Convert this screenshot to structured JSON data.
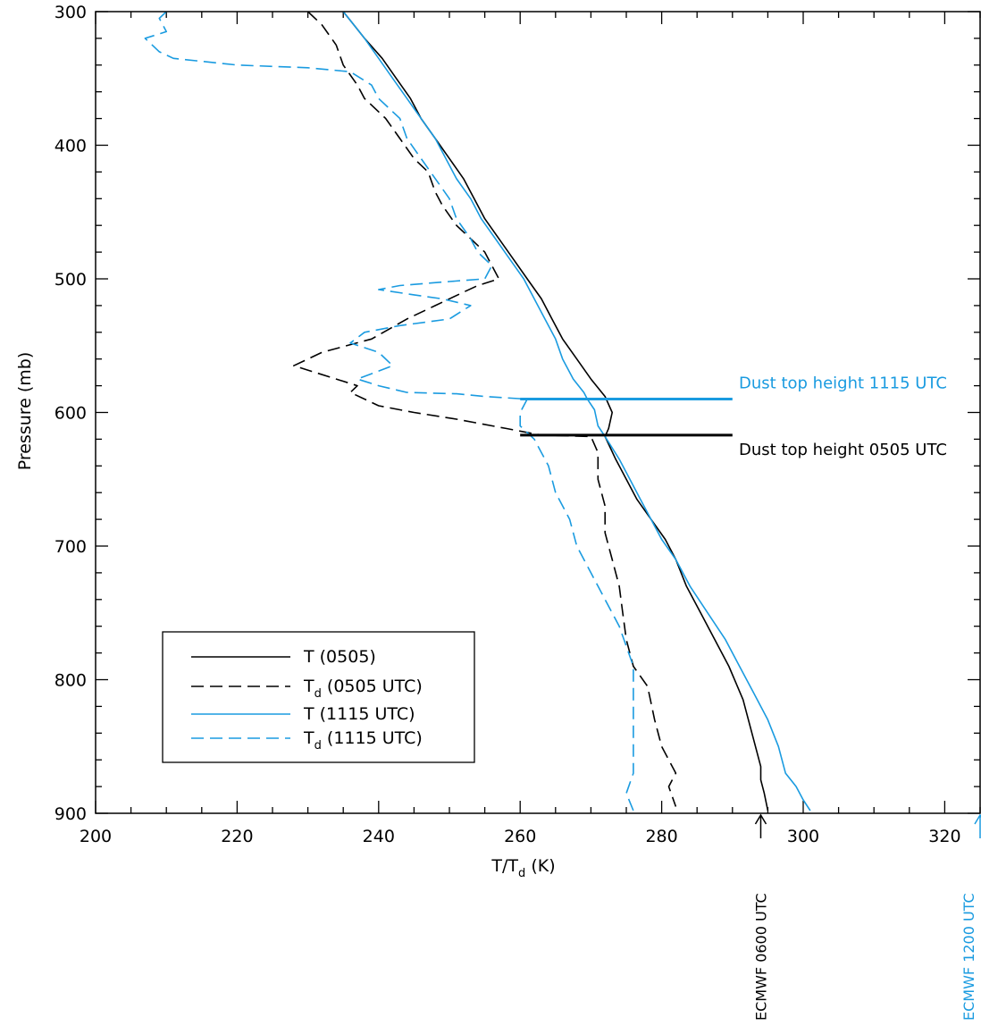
{
  "colors": {
    "black": "#000000",
    "blue": "#1a9be0"
  },
  "chart_data": {
    "type": "line",
    "xlabel": "T/T",
    "xlabel_sub": "d",
    "xlabel_unit": " (K)",
    "ylabel": "Pressure (mb)",
    "xlim": [
      200,
      325
    ],
    "ylim": [
      300,
      900
    ],
    "y_inverted": true,
    "x_ticks": [
      200,
      220,
      240,
      260,
      280,
      300,
      320
    ],
    "y_ticks": [
      300,
      400,
      500,
      600,
      700,
      800,
      900
    ],
    "legend": {
      "position": "bottom-left",
      "entries": [
        {
          "main": "T (0505)",
          "sub": "",
          "rest": "",
          "color": "#000000",
          "dash": "solid"
        },
        {
          "main": "T",
          "sub": "d",
          "rest": " (0505 UTC)",
          "color": "#000000",
          "dash": "dashed"
        },
        {
          "main": "T (1115 UTC)",
          "sub": "",
          "rest": "",
          "color": "#1a9be0",
          "dash": "solid"
        },
        {
          "main": "T",
          "sub": "d",
          "rest": " (1115 UTC)",
          "color": "#1a9be0",
          "dash": "dashed"
        }
      ]
    },
    "series": [
      {
        "name": "T (0505)",
        "color": "#000000",
        "dash": "solid",
        "points": [
          [
            235,
            300
          ],
          [
            236.5,
            310
          ],
          [
            238,
            320
          ],
          [
            240.5,
            335
          ],
          [
            242.5,
            350
          ],
          [
            244.5,
            365
          ],
          [
            246,
            380
          ],
          [
            248,
            395
          ],
          [
            250,
            410
          ],
          [
            252,
            425
          ],
          [
            253.5,
            440
          ],
          [
            255,
            455
          ],
          [
            257,
            470
          ],
          [
            259,
            485
          ],
          [
            261,
            500
          ],
          [
            263,
            515
          ],
          [
            264.5,
            530
          ],
          [
            266,
            545
          ],
          [
            268,
            560
          ],
          [
            270,
            575
          ],
          [
            272,
            588
          ],
          [
            273,
            600
          ],
          [
            272.5,
            612
          ],
          [
            272,
            618
          ],
          [
            273.5,
            635
          ],
          [
            275,
            650
          ],
          [
            276.5,
            665
          ],
          [
            278.5,
            680
          ],
          [
            280.5,
            695
          ],
          [
            282,
            710
          ],
          [
            283.5,
            730
          ],
          [
            285.5,
            750
          ],
          [
            287.5,
            770
          ],
          [
            289.5,
            790
          ],
          [
            291.5,
            815
          ],
          [
            293,
            845
          ],
          [
            294,
            865
          ],
          [
            294,
            875
          ],
          [
            294.5,
            885
          ],
          [
            295,
            898
          ]
        ]
      },
      {
        "name": "Td (0505 UTC)",
        "color": "#000000",
        "dash": "dashed",
        "points": [
          [
            230,
            300
          ],
          [
            232,
            310
          ],
          [
            234,
            325
          ],
          [
            235,
            340
          ],
          [
            237,
            355
          ],
          [
            238,
            365
          ],
          [
            241,
            380
          ],
          [
            243,
            395
          ],
          [
            245,
            410
          ],
          [
            247,
            420
          ],
          [
            248,
            435
          ],
          [
            249,
            445
          ],
          [
            251,
            460
          ],
          [
            253,
            470
          ],
          [
            255,
            480
          ],
          [
            256,
            490
          ],
          [
            257,
            500
          ],
          [
            254,
            505
          ],
          [
            252,
            510
          ],
          [
            248,
            520
          ],
          [
            244,
            530
          ],
          [
            239,
            545
          ],
          [
            232,
            555
          ],
          [
            228,
            565
          ],
          [
            234,
            575
          ],
          [
            237,
            580
          ],
          [
            236,
            585
          ],
          [
            240,
            595
          ],
          [
            245,
            600
          ],
          [
            251,
            605
          ],
          [
            258,
            612
          ],
          [
            263,
            617
          ],
          [
            270,
            618
          ],
          [
            271,
            630
          ],
          [
            271,
            650
          ],
          [
            272,
            670
          ],
          [
            272,
            690
          ],
          [
            273,
            710
          ],
          [
            274,
            730
          ],
          [
            274.5,
            750
          ],
          [
            275,
            770
          ],
          [
            276,
            790
          ],
          [
            278,
            805
          ],
          [
            279,
            830
          ],
          [
            280,
            850
          ],
          [
            282,
            870
          ],
          [
            281,
            880
          ],
          [
            282,
            895
          ]
        ]
      },
      {
        "name": "T (1115 UTC)",
        "color": "#1a9be0",
        "dash": "solid",
        "points": [
          [
            235,
            300
          ],
          [
            236.5,
            310
          ],
          [
            238,
            320
          ],
          [
            240,
            335
          ],
          [
            242,
            350
          ],
          [
            244,
            365
          ],
          [
            246,
            380
          ],
          [
            248,
            395
          ],
          [
            249.5,
            410
          ],
          [
            251,
            425
          ],
          [
            253,
            440
          ],
          [
            254.5,
            455
          ],
          [
            256.5,
            470
          ],
          [
            258.5,
            485
          ],
          [
            260.5,
            500
          ],
          [
            262,
            515
          ],
          [
            263.5,
            530
          ],
          [
            265,
            545
          ],
          [
            266,
            560
          ],
          [
            267.5,
            575
          ],
          [
            269,
            585
          ],
          [
            269.5,
            590
          ],
          [
            270.5,
            598
          ],
          [
            271,
            610
          ],
          [
            272,
            618
          ],
          [
            274,
            635
          ],
          [
            275.5,
            650
          ],
          [
            277,
            665
          ],
          [
            278.5,
            680
          ],
          [
            280,
            695
          ],
          [
            282,
            710
          ],
          [
            284,
            730
          ],
          [
            286.5,
            750
          ],
          [
            289,
            770
          ],
          [
            291,
            790
          ],
          [
            293,
            810
          ],
          [
            295,
            830
          ],
          [
            296.5,
            850
          ],
          [
            297.5,
            870
          ],
          [
            299,
            880
          ],
          [
            300,
            890
          ],
          [
            301,
            898
          ]
        ]
      },
      {
        "name": "Td (1115 UTC)",
        "color": "#1a9be0",
        "dash": "dashed",
        "points": [
          [
            210,
            300
          ],
          [
            209,
            305
          ],
          [
            210,
            315
          ],
          [
            207,
            320
          ],
          [
            209,
            330
          ],
          [
            211,
            335
          ],
          [
            220,
            340
          ],
          [
            230,
            342
          ],
          [
            236,
            345
          ],
          [
            239,
            355
          ],
          [
            240,
            365
          ],
          [
            243,
            380
          ],
          [
            244,
            395
          ],
          [
            246,
            410
          ],
          [
            248,
            425
          ],
          [
            250,
            440
          ],
          [
            251,
            455
          ],
          [
            253,
            470
          ],
          [
            254,
            480
          ],
          [
            256,
            490
          ],
          [
            255,
            500
          ],
          [
            250,
            502
          ],
          [
            243,
            505
          ],
          [
            240,
            508
          ],
          [
            245,
            512
          ],
          [
            249,
            515
          ],
          [
            253,
            520
          ],
          [
            250,
            530
          ],
          [
            243,
            535
          ],
          [
            238,
            540
          ],
          [
            236,
            548
          ],
          [
            240,
            555
          ],
          [
            242,
            565
          ],
          [
            237,
            575
          ],
          [
            240,
            580
          ],
          [
            244,
            585
          ],
          [
            251,
            586
          ],
          [
            255,
            588
          ],
          [
            261,
            590
          ],
          [
            260,
            600
          ],
          [
            260,
            610
          ],
          [
            262,
            620
          ],
          [
            264,
            640
          ],
          [
            265,
            660
          ],
          [
            267,
            680
          ],
          [
            268,
            700
          ],
          [
            270,
            720
          ],
          [
            272,
            740
          ],
          [
            274,
            760
          ],
          [
            275,
            775
          ],
          [
            276,
            790
          ],
          [
            276,
            810
          ],
          [
            276,
            830
          ],
          [
            276,
            850
          ],
          [
            276,
            870
          ],
          [
            275,
            885
          ],
          [
            276,
            898
          ]
        ]
      }
    ],
    "annotations": {
      "dust_1115": {
        "text": "Dust top height 1115 UTC",
        "color": "#1a9be0",
        "pressure": 590,
        "x_from": 260,
        "x_to": 290
      },
      "dust_0505": {
        "text": "Dust top height 0505 UTC",
        "color": "#000000",
        "pressure": 617,
        "x_from": 260,
        "x_to": 290
      },
      "ecmwf_0600": {
        "text": "ECMWF 0600 UTC",
        "color": "#000000",
        "x": 294
      },
      "ecmwf_1200": {
        "text": "ECMWF 1200 UTC",
        "color": "#1a9be0",
        "x": 325
      }
    }
  }
}
